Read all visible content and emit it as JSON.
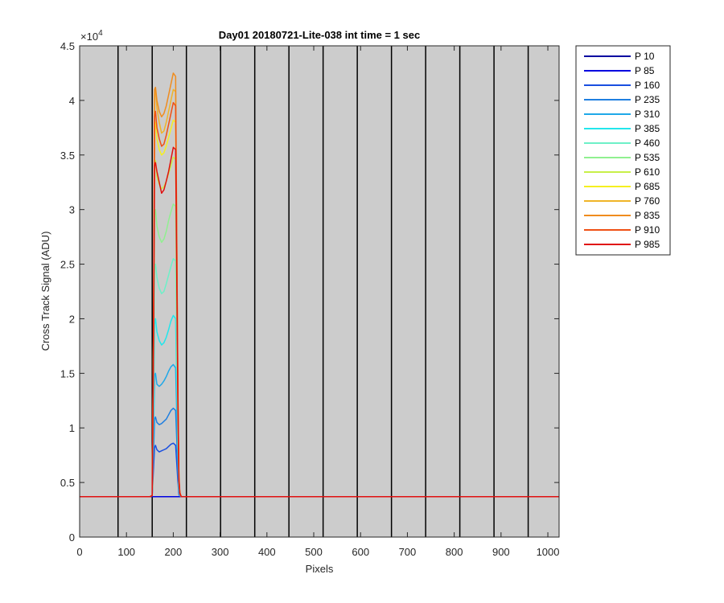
{
  "chart_data": {
    "type": "line",
    "title": "Day01 20180721-Lite-038 int time = 1 sec",
    "xlabel": "Pixels",
    "ylabel": "Cross Track Signal (ADU)",
    "y_exponent_label": "×10",
    "y_exponent_power": "4",
    "xlim": [
      0,
      1024
    ],
    "ylim": [
      0,
      45000
    ],
    "xticks": [
      "0",
      "100",
      "200",
      "300",
      "400",
      "500",
      "600",
      "700",
      "800",
      "900",
      "1000"
    ],
    "xtick_values": [
      0,
      100,
      200,
      300,
      400,
      500,
      600,
      700,
      800,
      900,
      1000
    ],
    "yticks": [
      "0",
      "0.5",
      "1",
      "1.5",
      "2",
      "2.5",
      "3",
      "3.5",
      "4",
      "4.5"
    ],
    "ytick_values": [
      0,
      5000,
      10000,
      15000,
      20000,
      25000,
      30000,
      35000,
      40000,
      45000
    ],
    "background_color": "#cccccc",
    "vertical_lines_x": [
      82,
      155,
      228,
      301,
      374,
      447,
      520,
      593,
      666,
      739,
      812,
      885,
      958
    ],
    "legend_position": "outside-right",
    "baseline": 3700,
    "x": [
      0,
      150,
      155,
      158,
      160,
      162,
      165,
      170,
      175,
      180,
      185,
      190,
      195,
      200,
      205,
      210,
      212,
      214,
      217,
      220,
      225,
      235,
      300,
      400,
      500,
      600,
      700,
      800,
      900,
      1024
    ],
    "series": [
      {
        "name": "P 10",
        "color": "#0000a0",
        "values": [
          3700,
          3700,
          3700,
          3700,
          3700,
          3700,
          3700,
          3700,
          3700,
          3700,
          3700,
          3700,
          3700,
          3700,
          3700,
          3700,
          3700,
          3700,
          3700,
          3700,
          3700,
          3700,
          3700,
          3700,
          3700,
          3700,
          3700,
          3700,
          3700,
          3700
        ]
      },
      {
        "name": "P 85",
        "color": "#0000e0",
        "values": [
          3700,
          3700,
          3700,
          3700,
          3700,
          3700,
          3700,
          3700,
          3700,
          3700,
          3700,
          3700,
          3700,
          3700,
          3700,
          3700,
          3700,
          3700,
          3700,
          3700,
          3700,
          3700,
          3700,
          3700,
          3700,
          3700,
          3700,
          3700,
          3700,
          3700
        ]
      },
      {
        "name": "P 160",
        "color": "#1a4fe0",
        "values": [
          3700,
          3700,
          3800,
          6500,
          8200,
          8400,
          8000,
          7800,
          7900,
          8000,
          8100,
          8300,
          8500,
          8600,
          8400,
          5000,
          3900,
          3750,
          3700,
          3700,
          3700,
          3700,
          3700,
          3700,
          3700,
          3700,
          3700,
          3700,
          3700,
          3700
        ]
      },
      {
        "name": "P 235",
        "color": "#1f7fe0",
        "values": [
          3700,
          3700,
          3800,
          8000,
          10800,
          11000,
          10500,
          10300,
          10400,
          10600,
          10800,
          11200,
          11600,
          11800,
          11600,
          6000,
          4100,
          3800,
          3700,
          3700,
          3700,
          3700,
          3700,
          3700,
          3700,
          3700,
          3700,
          3700,
          3700,
          3700
        ]
      },
      {
        "name": "P 310",
        "color": "#1fa8e8",
        "values": [
          3700,
          3700,
          3800,
          10000,
          14800,
          15000,
          14000,
          13800,
          14000,
          14300,
          14700,
          15200,
          15600,
          15800,
          15500,
          7000,
          4300,
          3850,
          3700,
          3700,
          3700,
          3700,
          3700,
          3700,
          3700,
          3700,
          3700,
          3700,
          3700,
          3700
        ]
      },
      {
        "name": "P 385",
        "color": "#22e6ec",
        "values": [
          3700,
          3700,
          3800,
          12000,
          19500,
          20000,
          18800,
          18000,
          17600,
          17800,
          18300,
          19000,
          19800,
          20300,
          20000,
          8000,
          4500,
          3900,
          3700,
          3700,
          3700,
          3700,
          3700,
          3700,
          3700,
          3700,
          3700,
          3700,
          3700,
          3700
        ]
      },
      {
        "name": "P 460",
        "color": "#6ef0c8",
        "values": [
          3700,
          3700,
          3800,
          14000,
          24500,
          25000,
          23800,
          22800,
          22300,
          22500,
          23200,
          24000,
          24800,
          25500,
          25300,
          9000,
          4700,
          3900,
          3700,
          3700,
          3700,
          3700,
          3700,
          3700,
          3700,
          3700,
          3700,
          3700,
          3700,
          3700
        ]
      },
      {
        "name": "P 535",
        "color": "#90f090",
        "values": [
          3700,
          3700,
          3800,
          16000,
          29500,
          30000,
          28500,
          27500,
          27000,
          27300,
          28000,
          29000,
          29800,
          30500,
          30300,
          10000,
          4900,
          3950,
          3700,
          3700,
          3700,
          3700,
          3700,
          3700,
          3700,
          3700,
          3700,
          3700,
          3700,
          3700
        ]
      },
      {
        "name": "P 610",
        "color": "#c8f048",
        "values": [
          3700,
          3700,
          3800,
          18000,
          34000,
          34500,
          33000,
          32300,
          31900,
          32100,
          32600,
          33300,
          34000,
          34800,
          34600,
          11000,
          5100,
          4000,
          3700,
          3700,
          3700,
          3700,
          3700,
          3700,
          3700,
          3700,
          3700,
          3700,
          3700,
          3700
        ]
      },
      {
        "name": "P 685",
        "color": "#f5f020",
        "values": [
          3700,
          3700,
          3800,
          19000,
          37500,
          38000,
          36500,
          35500,
          35000,
          35200,
          35800,
          36600,
          37400,
          38200,
          38000,
          12000,
          5300,
          4000,
          3700,
          3700,
          3700,
          3700,
          3700,
          3700,
          3700,
          3700,
          3700,
          3700,
          3700,
          3700
        ]
      },
      {
        "name": "P 760",
        "color": "#f0b428",
        "values": [
          3700,
          3700,
          3800,
          20000,
          40500,
          41000,
          39300,
          38000,
          37000,
          37200,
          38000,
          39000,
          40000,
          41000,
          40800,
          12500,
          5400,
          4050,
          3700,
          3700,
          3700,
          3700,
          3700,
          3700,
          3700,
          3700,
          3700,
          3700,
          3700,
          3700
        ]
      },
      {
        "name": "P 835",
        "color": "#f08c1e",
        "values": [
          3700,
          3700,
          3800,
          20500,
          41000,
          41200,
          40000,
          39000,
          38500,
          38800,
          39500,
          40500,
          41500,
          42500,
          42200,
          13000,
          5500,
          4100,
          3700,
          3700,
          3700,
          3700,
          3700,
          3700,
          3700,
          3700,
          3700,
          3700,
          3700,
          3700
        ]
      },
      {
        "name": "P 910",
        "color": "#f05014",
        "values": [
          3700,
          3700,
          3800,
          19500,
          38500,
          39000,
          37500,
          36500,
          35800,
          36000,
          36800,
          37800,
          38800,
          39800,
          39500,
          12500,
          5400,
          4050,
          3700,
          3700,
          3700,
          3700,
          3700,
          3700,
          3700,
          3700,
          3700,
          3700,
          3700,
          3700
        ]
      },
      {
        "name": "P 985",
        "color": "#e01010",
        "values": [
          3700,
          3700,
          3800,
          18000,
          34000,
          34300,
          33500,
          32500,
          31500,
          31800,
          32600,
          33500,
          34600,
          35700,
          35500,
          11500,
          5200,
          4000,
          3700,
          3700,
          3700,
          3700,
          3700,
          3700,
          3700,
          3700,
          3700,
          3700,
          3700,
          3700
        ]
      }
    ]
  }
}
